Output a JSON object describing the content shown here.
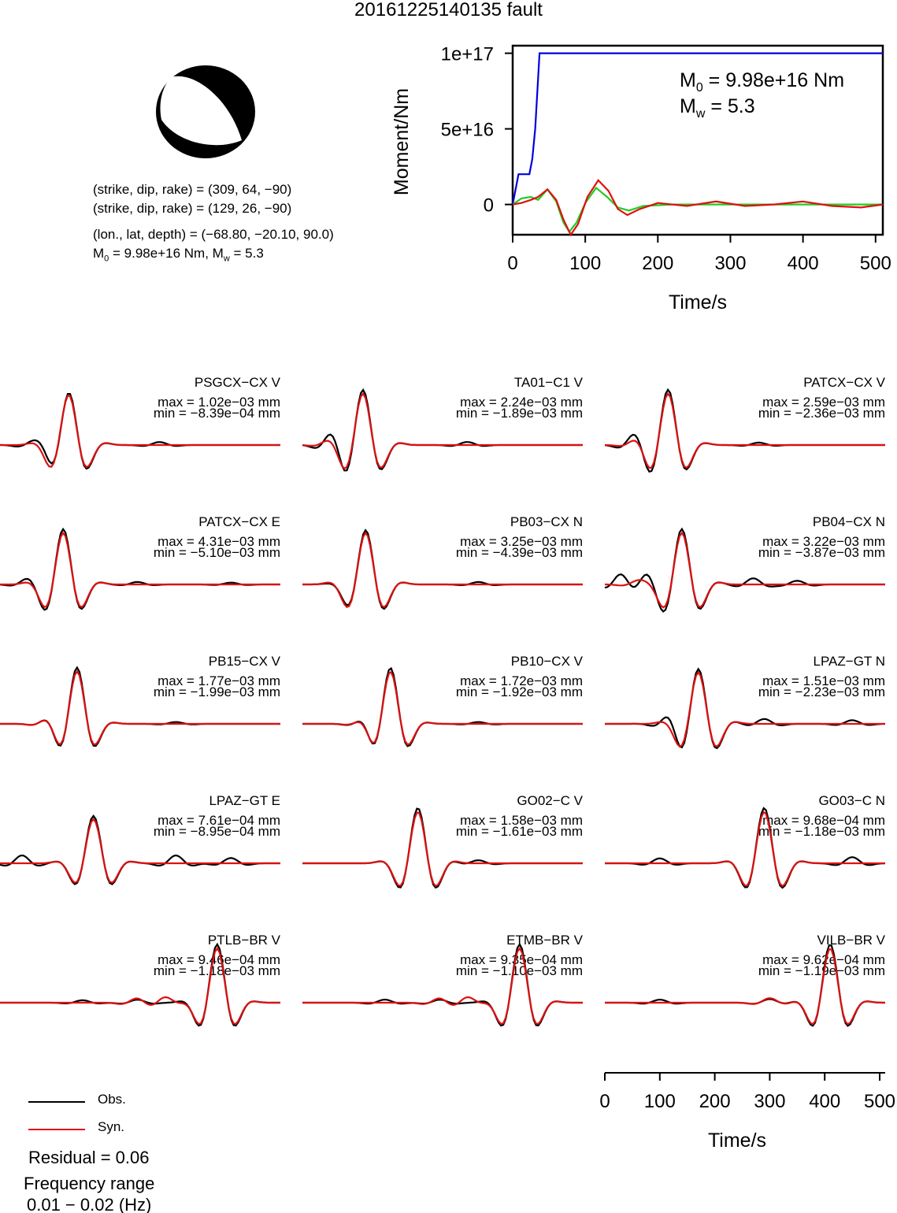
{
  "title": "20161225140135 fault",
  "mechanism": {
    "plane1": "(strike, dip, rake) = (309, 64, −90)",
    "plane2": "(strike, dip, rake) = (129, 26, −90)",
    "location": "(lon., lat, depth) = (−68.80, −20.10, 90.0)",
    "moment": "M",
    "moment_sub": "0",
    "moment_rest": " = 9.98e+16 Nm, M",
    "mw_sub": "w",
    "mw_rest": " = 5.3"
  },
  "colors": {
    "observed": "#000000",
    "synthetic": "#dd1111",
    "moment_total": "#0000dd",
    "moment_green": "#22cc22"
  },
  "chart_data": [
    {
      "type": "line",
      "xlabel": "Time/s",
      "ylabel": "Moment/Nm",
      "xlim": [
        0,
        510
      ],
      "ylim": [
        -2e+16,
        1.05e+17
      ],
      "xticks": [
        "0",
        "100",
        "200",
        "300",
        "400",
        "500"
      ],
      "yticks": [
        "0",
        "5e+16",
        "1e+17"
      ],
      "annotation_m0": "M",
      "annotation_m0_sub": "0",
      "annotation_m0_val": " = 9.98e+16 Nm",
      "annotation_mw": "M",
      "annotation_mw_sub": "w",
      "annotation_mw_val": " = 5.3",
      "series": [
        {
          "color": "#0000dd",
          "x": [
            0,
            8,
            13,
            23,
            27,
            31,
            37,
            510
          ],
          "values": [
            0,
            2e+16,
            2e+16,
            2e+16,
            3e+16,
            5e+16,
            1e+17,
            1e+17
          ]
        },
        {
          "color": "#22cc22",
          "x": [
            0,
            12,
            25,
            35,
            48,
            60,
            70,
            78,
            88,
            100,
            115,
            130,
            145,
            160,
            180,
            220,
            260,
            300,
            350,
            400,
            450,
            510
          ],
          "values": [
            0,
            4000000000000000.0,
            5000000000000000.0,
            3000000000000000.0,
            1e+16,
            2000000000000000.0,
            -1.2e+16,
            -1.8e+16,
            -1.2e+16,
            1000000000000000.0,
            1.1e+16,
            5000000000000000.0,
            -2000000000000000.0,
            -4000000000000000.0,
            -1000000000000000.0,
            0,
            0,
            0,
            0,
            0,
            0,
            0
          ]
        },
        {
          "color": "#dd1111",
          "x": [
            0,
            12,
            25,
            35,
            48,
            60,
            70,
            80,
            90,
            103,
            118,
            132,
            145,
            158,
            175,
            200,
            240,
            280,
            320,
            360,
            400,
            440,
            480,
            510
          ],
          "values": [
            0,
            1000000000000000.0,
            3000000000000000.0,
            5000000000000000.0,
            1e+16,
            3000000000000000.0,
            -1e+16,
            -2e+16,
            -1.3e+16,
            5000000000000000.0,
            1.6e+16,
            9000000000000000.0,
            -3000000000000000.0,
            -7000000000000000.0,
            -3000000000000000.0,
            1000000000000000.0,
            -1000000000000000.0,
            2000000000000000.0,
            -1000000000000000.0,
            0,
            2000000000000000.0,
            -1000000000000000.0,
            -2000000000000000.0,
            0
          ]
        }
      ]
    },
    {
      "type": "line",
      "xlabel": "Time/s",
      "xlim": [
        0,
        510
      ],
      "xticks": [
        "0",
        "100",
        "200",
        "300",
        "400",
        "500"
      ],
      "series_names": [
        "Obs.",
        "Syn."
      ],
      "stations": [
        {
          "label": "PSGCX−CX V",
          "max": "max = 1.02e−03 mm",
          "min": "min = −8.39e−04 mm",
          "t0": 125,
          "s": 28,
          "f": 0.9,
          "amps": [
            1.02,
            -0.84
          ],
          "obs_a": [
            [
              60,
              0.08
            ],
            [
              85,
              0.15
            ],
            [
              290,
              0.05
            ]
          ],
          "syn_a": []
        },
        {
          "label": "TA01−C1 V",
          "max": "max = 2.24e−03 mm",
          "min": "min = −1.89e−03 mm",
          "t0": 110,
          "s": 28,
          "f": 0.9,
          "amps": [
            2.24,
            -1.89
          ],
          "obs_a": [
            [
              55,
              0.18
            ],
            [
              300,
              0.05
            ]
          ],
          "syn_a": [
            [
              50,
              0.05
            ]
          ]
        },
        {
          "label": "PATCX−CX V",
          "max": "max = 2.59e−03 mm",
          "min": "min = −2.36e−03 mm",
          "t0": 115,
          "s": 28,
          "f": 0.9,
          "amps": [
            2.59,
            -2.36
          ],
          "obs_a": [
            [
              55,
              0.15
            ],
            [
              280,
              0.04
            ]
          ],
          "syn_a": [
            [
              60,
              0.07
            ]
          ]
        },
        {
          "label": "PATCX−CX E",
          "max": "max = 4.31e−03 mm",
          "min": "min = −5.10e−03 mm",
          "t0": 115,
          "s": 28,
          "f": 0.9,
          "amps": [
            4.31,
            -5.1
          ],
          "obs_a": [
            [
              50,
              0.06
            ],
            [
              250,
              0.04
            ],
            [
              420,
              0.03
            ]
          ],
          "syn_a": []
        },
        {
          "label": "PB03−CX N",
          "max": "max = 3.25e−03 mm",
          "min": "min = −4.39e−03 mm",
          "t0": 115,
          "s": 28,
          "f": 0.9,
          "amps": [
            3.25,
            -4.39
          ],
          "obs_a": [
            [
              80,
              0.06
            ],
            [
              320,
              0.04
            ]
          ],
          "syn_a": []
        },
        {
          "label": "PB04−CX N",
          "max": "max = 3.22e−03 mm",
          "min": "min = −3.87e−03 mm",
          "t0": 140,
          "s": 28,
          "f": 0.9,
          "amps": [
            3.22,
            -3.87
          ],
          "obs_a": [
            [
              30,
              0.18
            ],
            [
              75,
              0.15
            ],
            [
              270,
              0.1
            ],
            [
              350,
              0.06
            ]
          ],
          "syn_a": [
            [
              60,
              0.06
            ]
          ]
        },
        {
          "label": "PB15−CX V",
          "max": "max = 1.77e−03 mm",
          "min": "min = −1.99e−03 mm",
          "t0": 140,
          "s": 26,
          "f": 0.92,
          "amps": [
            1.77,
            -1.99
          ],
          "obs_a": [
            [
              90,
              0.08
            ],
            [
              320,
              0.03
            ]
          ],
          "syn_a": [
            [
              90,
              0.08
            ]
          ]
        },
        {
          "label": "PB10−CX V",
          "max": "max = 1.72e−03 mm",
          "min": "min = −1.92e−03 mm",
          "t0": 160,
          "s": 26,
          "f": 0.92,
          "amps": [
            1.72,
            -1.92
          ],
          "obs_a": [
            [
              115,
              0.1
            ],
            [
              320,
              0.03
            ]
          ],
          "syn_a": [
            [
              115,
              0.08
            ]
          ]
        },
        {
          "label": "LPAZ−GT N",
          "max": "max = 1.51e−03 mm",
          "min": "min = −2.23e−03 mm",
          "t0": 170,
          "s": 28,
          "f": 0.9,
          "amps": [
            1.51,
            -2.23
          ],
          "obs_a": [
            [
              120,
              0.15
            ],
            [
              290,
              0.08
            ],
            [
              450,
              0.06
            ]
          ],
          "syn_a": []
        },
        {
          "label": "LPAZ−GT E",
          "max": "max = 7.61e−04 mm",
          "min": "min = −8.95e−04 mm",
          "t0": 170,
          "s": 28,
          "f": 0.9,
          "amps": [
            0.76,
            -0.9
          ],
          "obs_a": [
            [
              40,
              0.15
            ],
            [
              320,
              0.15
            ],
            [
              420,
              0.1
            ]
          ],
          "syn_a": []
        },
        {
          "label": "GO02−C V",
          "max": "max = 1.58e−03 mm",
          "min": "min = −1.61e−03 mm",
          "t0": 210,
          "s": 28,
          "f": 0.9,
          "amps": [
            1.58,
            -1.61
          ],
          "obs_a": [
            [
              320,
              0.05
            ]
          ],
          "syn_a": []
        },
        {
          "label": "GO03−C N",
          "max": "max = 9.68e−04 mm",
          "min": "min = −1.18e−03 mm",
          "t0": 290,
          "s": 28,
          "f": 0.9,
          "amps": [
            0.97,
            -1.18
          ],
          "obs_a": [
            [
              100,
              0.08
            ],
            [
              450,
              0.1
            ]
          ],
          "syn_a": []
        },
        {
          "label": "PTLB−BR V",
          "max": "max = 9.46e−04 mm",
          "min": "min = −1.18e−03 mm",
          "t0": 395,
          "s": 26,
          "f": 0.95,
          "amps": [
            0.95,
            -1.18
          ],
          "obs_a": [
            [
              150,
              0.04
            ],
            [
              250,
              0.05
            ]
          ],
          "syn_a": [
            [
              250,
              0.08
            ],
            [
              300,
              0.1
            ]
          ]
        },
        {
          "label": "ETMB−BR V",
          "max": "max = 9.35e−04 mm",
          "min": "min = −1.10e−03 mm",
          "t0": 395,
          "s": 26,
          "f": 0.95,
          "amps": [
            0.94,
            -1.1
          ],
          "obs_a": [
            [
              150,
              0.05
            ],
            [
              250,
              0.05
            ]
          ],
          "syn_a": [
            [
              250,
              0.08
            ],
            [
              300,
              0.1
            ]
          ]
        },
        {
          "label": "VILB−BR V",
          "max": "max = 9.62e−04 mm",
          "min": "min = −1.19e−03 mm",
          "t0": 410,
          "s": 26,
          "f": 0.95,
          "amps": [
            0.96,
            -1.19
          ],
          "obs_a": [
            [
              100,
              0.05
            ],
            [
              300,
              0.06
            ]
          ],
          "syn_a": [
            [
              300,
              0.08
            ]
          ]
        }
      ]
    }
  ],
  "legend": {
    "obs": "Obs.",
    "syn": "Syn."
  },
  "residual": "Residual = 0.06",
  "freq_label": "Frequency range",
  "freq_value": "0.01 − 0.02 (Hz)"
}
